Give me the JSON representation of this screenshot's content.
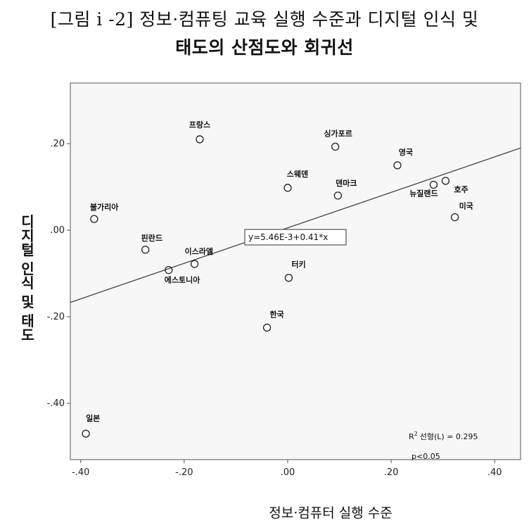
{
  "title_line1": "[그림 i -2] 정보·컴퓨팅 교육 실행 수준과 디지털 인식 및",
  "title_line2": "태도의 산점도와 회귀선",
  "chart_data": {
    "type": "scatter",
    "xlabel": "정보·컴퓨터 실행 수준",
    "ylabel": "디지털 인식 및 태도",
    "xlim": [
      -0.42,
      0.45
    ],
    "ylim": [
      -0.53,
      0.34
    ],
    "xticks": [
      -0.4,
      -0.2,
      0.0,
      0.2,
      0.4
    ],
    "xtick_labels": [
      "-.40",
      "-.20",
      ".00",
      ".20",
      ".40"
    ],
    "yticks": [
      -0.4,
      -0.2,
      0.0,
      0.2
    ],
    "ytick_labels": [
      "-.40",
      "-.20",
      ".00",
      ".20"
    ],
    "grid": false,
    "points": [
      {
        "label": "프랑스",
        "x": -0.17,
        "y": 0.21
      },
      {
        "label": "싱가포르",
        "x": 0.092,
        "y": 0.193
      },
      {
        "label": "영국",
        "x": 0.212,
        "y": 0.15
      },
      {
        "label": "스웨덴",
        "x": 0.0,
        "y": 0.098
      },
      {
        "label": "덴마크",
        "x": 0.097,
        "y": 0.08
      },
      {
        "label": "뉴질랜드",
        "x": 0.282,
        "y": 0.105
      },
      {
        "label": "호주",
        "x": 0.305,
        "y": 0.114
      },
      {
        "label": "미국",
        "x": 0.323,
        "y": 0.03
      },
      {
        "label": "불가리아",
        "x": -0.374,
        "y": 0.026
      },
      {
        "label": "핀란드",
        "x": -0.275,
        "y": -0.045
      },
      {
        "label": "이스라엘",
        "x": -0.18,
        "y": -0.078
      },
      {
        "label": "에스토니아",
        "x": -0.23,
        "y": -0.092
      },
      {
        "label": "터키",
        "x": 0.002,
        "y": -0.11
      },
      {
        "label": "한국",
        "x": -0.04,
        "y": -0.225
      },
      {
        "label": "일본",
        "x": -0.39,
        "y": -0.47
      }
    ],
    "fit": {
      "intercept": 0.00546,
      "slope": 0.41,
      "equation": "y=5.46E-3+0.41*x"
    },
    "r2_text": "선형(L) = 0.295",
    "r2_prefix": "R",
    "r2_sup": "2",
    "p_text": "p<0.05"
  }
}
